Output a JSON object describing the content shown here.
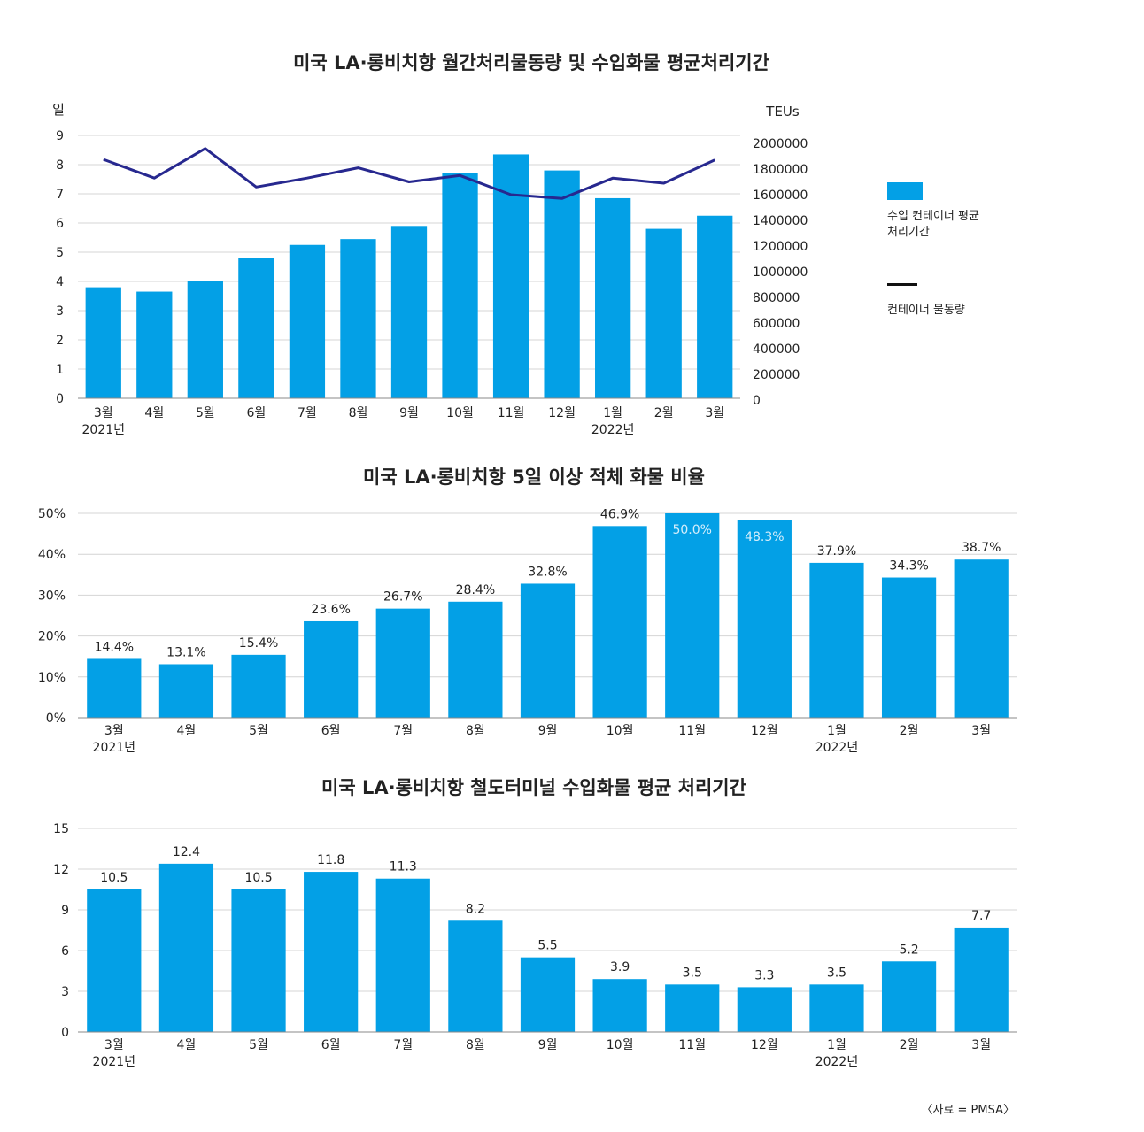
{
  "colors": {
    "bar": "#03a0e6",
    "line": "#27288f",
    "grid": "#d4d4d4",
    "axis": "#888888",
    "text": "#222222",
    "inner_label": "#d6eefb"
  },
  "legend": {
    "bar_label": "수입 컨테이너 평균 처리기간",
    "line_label": "컨테이너 물동량"
  },
  "source": "〈자료 = PMSA〉",
  "chart_data": [
    {
      "type": "bar",
      "title": "미국 LA·롱비치항 월간처리물동량 및 수입화물 평균처리기간",
      "categories": [
        "3월",
        "4월",
        "5월",
        "6월",
        "7월",
        "8월",
        "9월",
        "10월",
        "11월",
        "12월",
        "1월",
        "2월",
        "3월"
      ],
      "year_labels": [
        {
          "index": 0,
          "label": "2021년"
        },
        {
          "index": 10,
          "label": "2022년"
        }
      ],
      "series": [
        {
          "name": "수입 컨테이너 평균 처리기간",
          "type": "bar",
          "axis": "left",
          "values": [
            3.8,
            3.65,
            4.0,
            4.8,
            5.25,
            5.45,
            5.9,
            7.7,
            8.35,
            7.8,
            6.85,
            5.8,
            6.25
          ]
        },
        {
          "name": "컨테이너 물동량",
          "type": "line",
          "axis": "right",
          "values": [
            1875000,
            1730000,
            1960000,
            1660000,
            1730000,
            1810000,
            1700000,
            1750000,
            1600000,
            1570000,
            1730000,
            1690000,
            1870000
          ]
        }
      ],
      "ylabel": "일",
      "ylim": [
        0,
        9
      ],
      "yticks": [
        "0",
        "1",
        "2",
        "3",
        "4",
        "5",
        "6",
        "7",
        "8",
        "9"
      ],
      "y2label": "TEUs",
      "y2lim": [
        0,
        2000000
      ],
      "y2ticks": [
        "0",
        "200000",
        "400000",
        "600000",
        "800000",
        "1000000",
        "1200000",
        "1400000",
        "1600000",
        "1800000",
        "2000000"
      ]
    },
    {
      "type": "bar",
      "title": "미국 LA·롱비치항 5일 이상 적체 화물 비율",
      "categories": [
        "3월",
        "4월",
        "5월",
        "6월",
        "7월",
        "8월",
        "9월",
        "10월",
        "11월",
        "12월",
        "1월",
        "2월",
        "3월"
      ],
      "year_labels": [
        {
          "index": 0,
          "label": "2021년"
        },
        {
          "index": 10,
          "label": "2022년"
        }
      ],
      "values": [
        14.4,
        13.1,
        15.4,
        23.6,
        26.7,
        28.4,
        32.8,
        46.9,
        50.0,
        48.3,
        37.9,
        34.3,
        38.7
      ],
      "value_labels": [
        "14.4%",
        "13.1%",
        "15.4%",
        "23.6%",
        "26.7%",
        "28.4%",
        "32.8%",
        "46.9%",
        "50.0%",
        "48.3%",
        "37.9%",
        "34.3%",
        "38.7%"
      ],
      "ylim": [
        0,
        50
      ],
      "yticks": [
        "0%",
        "10%",
        "20%",
        "30%",
        "40%",
        "50%"
      ]
    },
    {
      "type": "bar",
      "title": "미국 LA·롱비치항 철도터미널 수입화물 평균 처리기간",
      "categories": [
        "3월",
        "4월",
        "5월",
        "6월",
        "7월",
        "8월",
        "9월",
        "10월",
        "11월",
        "12월",
        "1월",
        "2월",
        "3월"
      ],
      "year_labels": [
        {
          "index": 0,
          "label": "2021년"
        },
        {
          "index": 10,
          "label": "2022년"
        }
      ],
      "values": [
        10.5,
        12.4,
        10.5,
        11.8,
        11.3,
        8.2,
        5.5,
        3.9,
        3.5,
        3.3,
        3.5,
        5.2,
        7.7
      ],
      "value_labels": [
        "10.5",
        "12.4",
        "10.5",
        "11.8",
        "11.3",
        "8.2",
        "5.5",
        "3.9",
        "3.5",
        "3.3",
        "3.5",
        "5.2",
        "7.7"
      ],
      "ylim": [
        0,
        15
      ],
      "yticks": [
        "0",
        "3",
        "6",
        "9",
        "12",
        "15"
      ]
    }
  ]
}
